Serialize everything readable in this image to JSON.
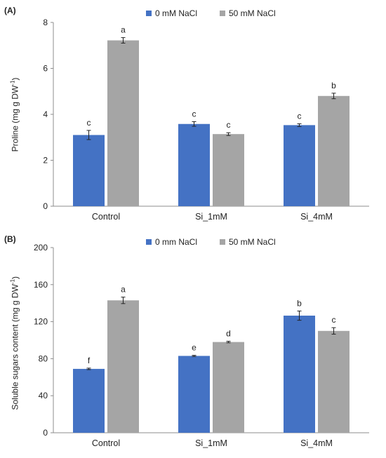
{
  "chart_data": [
    {
      "panel_label": "(A)",
      "type": "bar",
      "categories": [
        "Control",
        "Si_1mM",
        "Si_4mM"
      ],
      "ylabel": "Proline (mg g DW",
      "ylabel_sup": "-1",
      "ylabel_close": ")",
      "ylim": [
        0,
        8
      ],
      "yticks": [
        "0",
        "2",
        "4",
        "6",
        "8"
      ],
      "legend_position": "top",
      "series": [
        {
          "name": "0 mM NaCl",
          "color": "#4472C4",
          "values": [
            3.1,
            3.58,
            3.53
          ],
          "errors": [
            0.2,
            0.1,
            0.06
          ],
          "letters": [
            "c",
            "c",
            "c"
          ]
        },
        {
          "name": "50 mM NaCl",
          "color": "#A5A5A5",
          "values": [
            7.22,
            3.14,
            4.8
          ],
          "errors": [
            0.12,
            0.06,
            0.12
          ],
          "letters": [
            "a",
            "c",
            "b"
          ]
        }
      ]
    },
    {
      "panel_label": "(B)",
      "type": "bar",
      "categories": [
        "Control",
        "Si_1mM",
        "Si_4mM"
      ],
      "ylabel": "Soluble sugars content (mg g DW",
      "ylabel_sup": "-1",
      "ylabel_close": ")",
      "ylim": [
        0,
        200
      ],
      "yticks": [
        "0",
        "40",
        "80",
        "120",
        "160",
        "200"
      ],
      "legend_position": "top",
      "series": [
        {
          "name": "0 mm NaCl",
          "color": "#4472C4",
          "values": [
            69,
            83,
            126.5
          ],
          "errors": [
            0.8,
            0.6,
            5
          ],
          "letters": [
            "f",
            "e",
            "b"
          ]
        },
        {
          "name": "50 mM NaCl",
          "color": "#A5A5A5",
          "values": [
            143,
            98,
            110
          ],
          "errors": [
            3.5,
            0.8,
            3.5
          ],
          "letters": [
            "a",
            "d",
            "c"
          ]
        }
      ]
    }
  ]
}
